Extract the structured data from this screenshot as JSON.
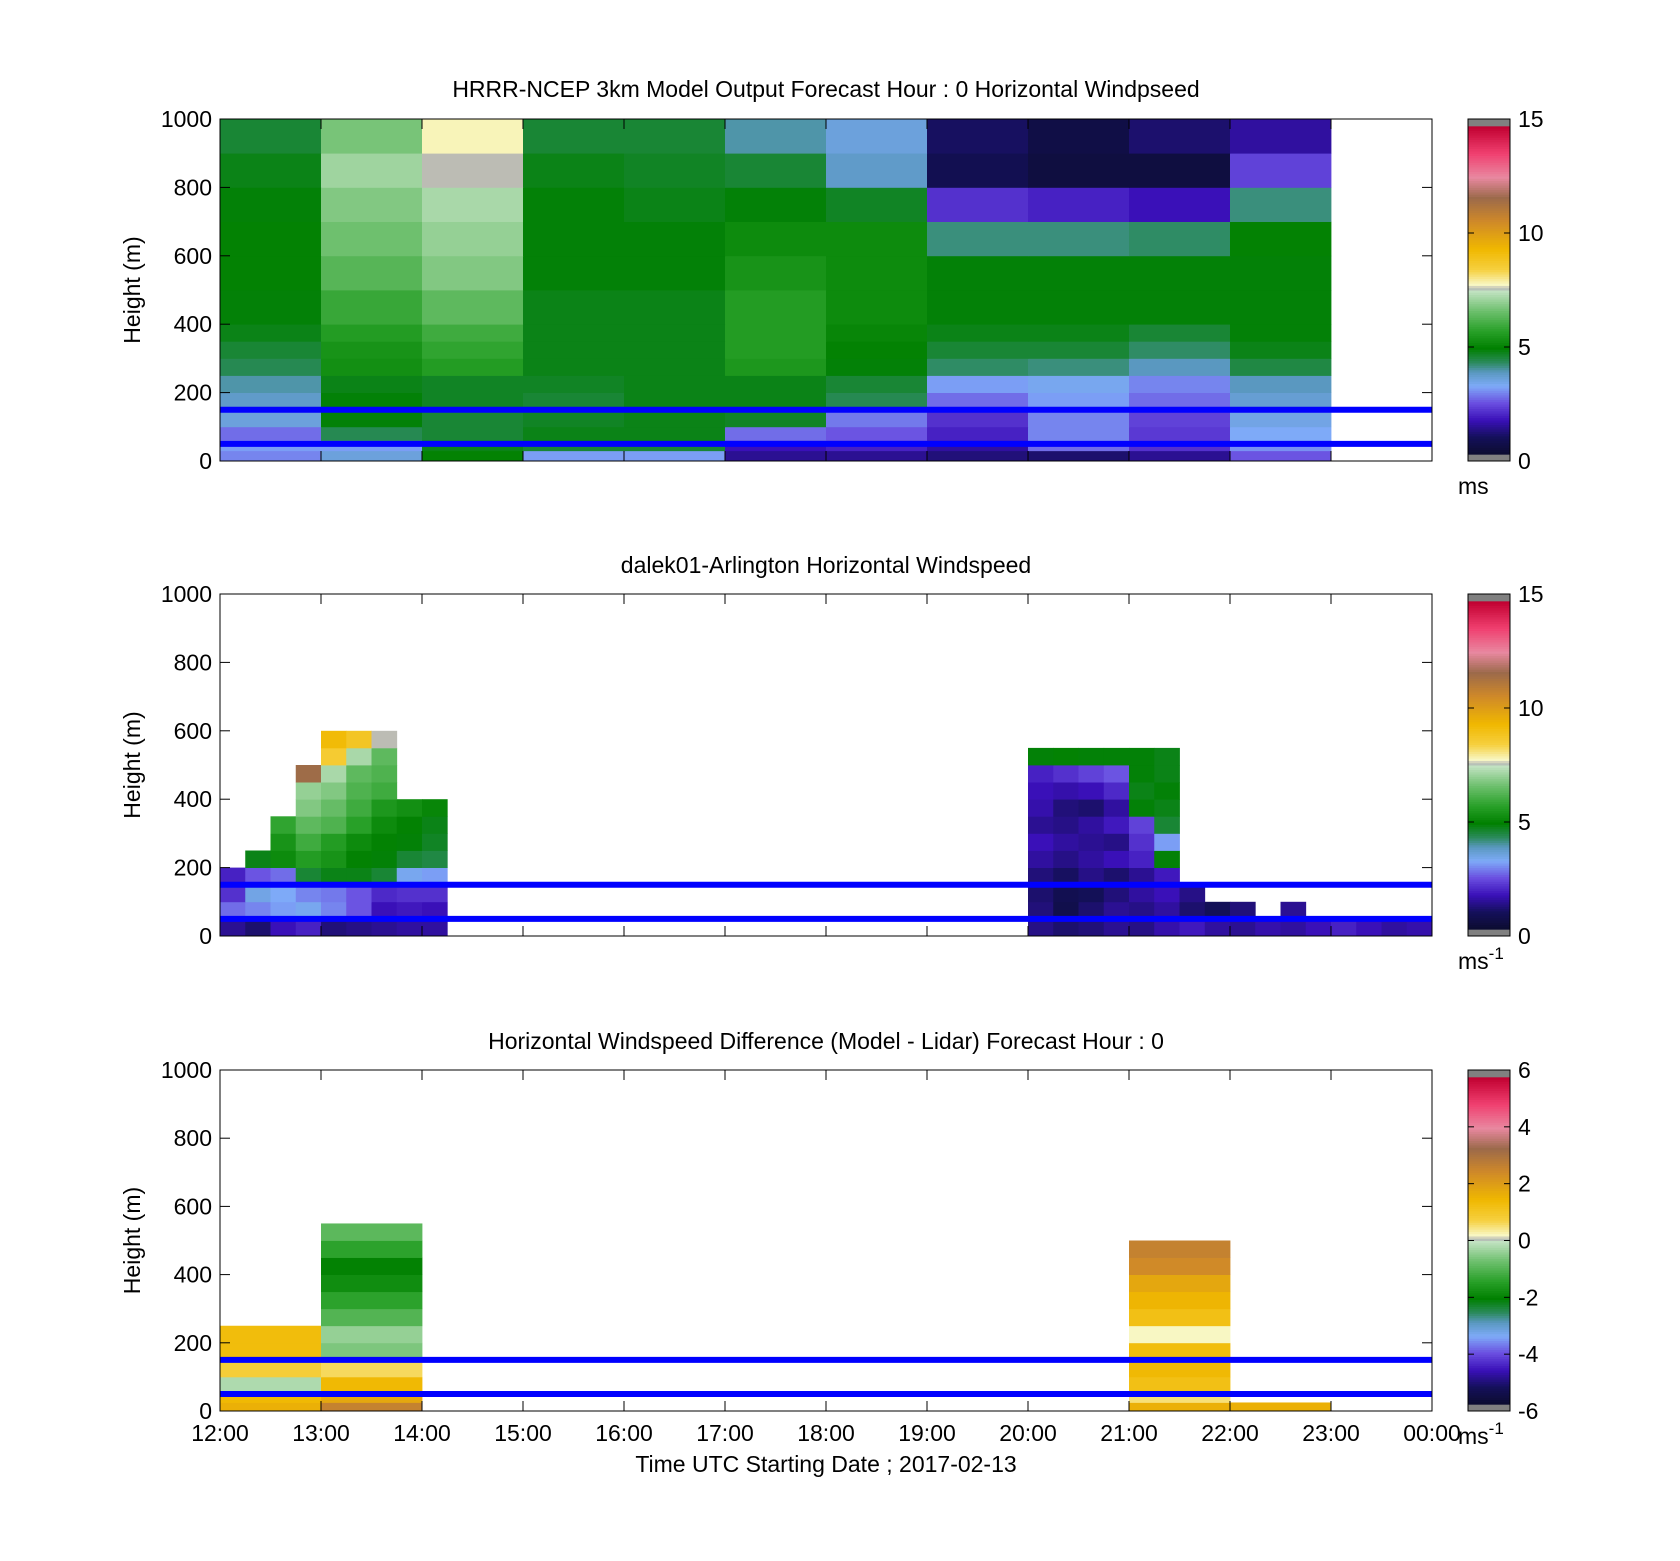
{
  "xaxis": {
    "title": "Time UTC  Starting Date ; 2017-02-13",
    "tick_labels": [
      "12:00",
      "13:00",
      "14:00",
      "15:00",
      "16:00",
      "17:00",
      "18:00",
      "19:00",
      "20:00",
      "21:00",
      "22:00",
      "23:00",
      "00:00"
    ]
  },
  "reference_lines": {
    "heights_m": [
      150,
      50
    ],
    "color": "#0000ff"
  },
  "chart_data": [
    {
      "type": "heatmap",
      "title": "HRRR-NCEP 3km Model Output   Forecast Hour : 0 Horizontal Windpseed",
      "ylabel": "Height (m)",
      "ylim": [
        0,
        1000
      ],
      "yticks": [
        "0",
        "200",
        "400",
        "600",
        "800",
        "1000"
      ],
      "xlim": [
        12,
        24
      ],
      "colorbar": {
        "min": 0,
        "max": 15,
        "ticks": [
          "0",
          "5",
          "10",
          "15"
        ],
        "unit": "ms",
        "unit_sup": ""
      },
      "time_bins_hr": [
        12,
        13,
        14,
        15,
        16,
        17,
        18,
        19,
        20,
        21,
        22,
        23
      ],
      "height_edges_m": [
        0,
        30,
        60,
        100,
        150,
        200,
        250,
        300,
        350,
        400,
        500,
        600,
        700,
        800,
        900,
        1000
      ],
      "values_ms": [
        [
          3.0,
          3.6,
          5.0,
          3.2,
          3.2,
          1.5,
          1.5,
          1.3,
          1.2,
          1.5,
          2.6,
          null
        ],
        [
          3.2,
          3.2,
          4.8,
          4.6,
          4.6,
          1.8,
          2.0,
          1.6,
          2.8,
          2.2,
          3.1,
          null
        ],
        [
          2.8,
          4.4,
          4.6,
          4.8,
          4.8,
          2.8,
          2.6,
          2.0,
          3.0,
          2.3,
          3.3,
          null
        ],
        [
          3.6,
          4.9,
          4.6,
          4.7,
          4.8,
          4.7,
          2.9,
          2.2,
          3.0,
          2.4,
          3.5,
          null
        ],
        [
          3.8,
          4.9,
          4.7,
          4.6,
          4.8,
          4.8,
          4.4,
          2.8,
          3.2,
          2.8,
          3.7,
          null
        ],
        [
          4.0,
          4.8,
          4.7,
          4.7,
          4.8,
          4.8,
          4.6,
          3.2,
          3.4,
          3.0,
          3.9,
          null
        ],
        [
          4.4,
          5.3,
          5.6,
          4.8,
          4.8,
          5.5,
          4.9,
          4.3,
          4.2,
          3.9,
          4.5,
          null
        ],
        [
          4.6,
          5.4,
          5.8,
          4.8,
          4.8,
          5.6,
          5.0,
          4.6,
          4.6,
          4.3,
          4.8,
          null
        ],
        [
          4.8,
          5.6,
          6.0,
          4.8,
          4.8,
          5.6,
          5.1,
          4.8,
          4.8,
          4.6,
          4.9,
          null
        ],
        [
          4.9,
          5.9,
          6.4,
          4.8,
          4.8,
          5.6,
          5.2,
          4.9,
          4.9,
          4.9,
          4.9,
          null
        ],
        [
          5.0,
          6.3,
          6.8,
          4.9,
          4.9,
          5.4,
          5.2,
          4.9,
          4.9,
          4.9,
          4.9,
          null
        ],
        [
          5.0,
          6.6,
          7.0,
          4.9,
          4.9,
          5.2,
          5.2,
          4.2,
          4.2,
          4.3,
          5.0,
          null
        ],
        [
          4.9,
          6.8,
          7.2,
          4.9,
          4.8,
          4.9,
          4.7,
          2.2,
          2.0,
          1.8,
          4.2,
          null
        ],
        [
          4.8,
          7.1,
          7.6,
          4.8,
          4.7,
          4.6,
          3.8,
          0.9,
          0.6,
          0.6,
          2.4,
          null
        ],
        [
          4.6,
          6.7,
          7.8,
          4.6,
          4.6,
          4.0,
          3.6,
          1.1,
          0.7,
          1.2,
          1.6,
          null
        ]
      ]
    },
    {
      "type": "heatmap",
      "title": "dalek01-Arlington  Horizontal Windspeed",
      "ylabel": "Height (m)",
      "ylim": [
        0,
        1000
      ],
      "yticks": [
        "0",
        "200",
        "400",
        "600",
        "800",
        "1000"
      ],
      "xlim": [
        12,
        24
      ],
      "colorbar": {
        "min": 0,
        "max": 15,
        "ticks": [
          "0",
          "5",
          "10",
          "15"
        ],
        "unit": "ms",
        "unit_sup": "-1"
      },
      "time_bins_hr": [
        12.0,
        12.25,
        12.5,
        12.75,
        13.0,
        13.25,
        13.5,
        13.75,
        14.0,
        20.0,
        20.25,
        20.5,
        20.75,
        21.0,
        21.25,
        21.5,
        21.75,
        22.0,
        22.25,
        22.5,
        22.75,
        23.0,
        23.25,
        23.5,
        23.75
      ],
      "height_edges_m": [
        0,
        50,
        100,
        150,
        200,
        250,
        300,
        350,
        400,
        450,
        500,
        550,
        600
      ],
      "values_ms": [
        [
          1.5,
          1.2,
          1.8,
          2.0,
          1.3,
          1.4,
          1.5,
          1.6,
          1.6,
          1.4,
          1.2,
          1.3,
          1.5,
          1.4,
          1.7,
          1.9,
          1.6,
          1.5,
          1.7,
          1.6,
          1.8,
          2.0,
          1.8,
          1.6,
          1.7
        ],
        [
          2.8,
          3.0,
          3.2,
          3.4,
          3.0,
          2.6,
          1.8,
          1.9,
          1.8,
          1.3,
          0.8,
          1.2,
          1.5,
          1.4,
          1.6,
          1.2,
          1.0,
          1.3,
          null,
          1.5,
          null,
          null,
          null,
          null,
          null
        ],
        [
          2.2,
          3.5,
          3.3,
          3.0,
          2.9,
          2.6,
          2.1,
          2.2,
          2.2,
          1.2,
          0.9,
          1.0,
          1.3,
          1.6,
          1.8,
          1.4,
          null,
          null,
          null,
          null,
          null,
          null,
          null,
          null,
          null
        ],
        [
          2.0,
          2.6,
          2.8,
          4.6,
          4.8,
          4.8,
          4.6,
          3.4,
          3.2,
          1.3,
          1.1,
          1.4,
          1.2,
          1.5,
          1.9,
          null,
          null,
          null,
          null,
          null,
          null,
          null,
          null,
          null,
          null
        ],
        [
          null,
          4.8,
          5.2,
          5.6,
          5.4,
          5.0,
          4.9,
          4.6,
          4.5,
          1.6,
          1.4,
          1.6,
          1.8,
          2.0,
          4.9,
          null,
          null,
          null,
          null,
          null,
          null,
          null,
          null,
          null,
          null
        ],
        [
          null,
          null,
          5.4,
          6.0,
          5.6,
          5.2,
          5.0,
          4.9,
          4.7,
          1.8,
          1.6,
          1.5,
          1.4,
          2.2,
          3.2,
          null,
          null,
          null,
          null,
          null,
          null,
          null,
          null,
          null,
          null
        ],
        [
          null,
          null,
          5.8,
          6.4,
          6.2,
          5.7,
          5.2,
          5.0,
          4.8,
          1.5,
          1.4,
          1.6,
          1.9,
          2.4,
          4.6,
          null,
          null,
          null,
          null,
          null,
          null,
          null,
          null,
          null,
          null
        ],
        [
          null,
          null,
          null,
          6.8,
          6.5,
          6.0,
          5.5,
          5.3,
          5.1,
          1.7,
          1.3,
          1.2,
          1.6,
          4.9,
          4.8,
          null,
          null,
          null,
          null,
          null,
          null,
          null,
          null,
          null,
          null
        ],
        [
          null,
          null,
          null,
          7.0,
          6.8,
          6.2,
          6.0,
          null,
          null,
          1.8,
          1.7,
          1.8,
          2.1,
          4.8,
          4.9,
          null,
          null,
          null,
          null,
          null,
          null,
          null,
          null,
          null,
          null
        ],
        [
          null,
          null,
          null,
          11.5,
          7.2,
          6.4,
          6.2,
          null,
          null,
          2.0,
          2.2,
          2.4,
          2.6,
          4.9,
          4.8,
          null,
          null,
          null,
          null,
          null,
          null,
          null,
          null,
          null,
          null
        ],
        [
          null,
          null,
          null,
          null,
          8.6,
          7.2,
          6.4,
          null,
          null,
          4.9,
          5.0,
          4.9,
          4.9,
          4.9,
          4.8,
          null,
          null,
          null,
          null,
          null,
          null,
          null,
          null,
          null,
          null
        ],
        [
          null,
          null,
          null,
          null,
          9.2,
          8.8,
          7.6,
          null,
          null,
          null,
          null,
          null,
          null,
          null,
          null,
          null,
          null,
          null,
          null,
          null,
          null,
          null,
          null,
          null,
          null
        ]
      ]
    },
    {
      "type": "heatmap",
      "title": "Horizontal Windspeed Difference (Model - Lidar) Forecast Hour : 0",
      "ylabel": "Height (m)",
      "ylim": [
        0,
        1000
      ],
      "yticks": [
        "0",
        "200",
        "400",
        "600",
        "800",
        "1000"
      ],
      "xlim": [
        12,
        24
      ],
      "colorbar": {
        "min": -6,
        "max": 6,
        "ticks": [
          "-6",
          "-4",
          "-2",
          "0",
          "2",
          "4",
          "6"
        ],
        "unit": "ms",
        "unit_sup": "-1"
      },
      "time_bins_hr": [
        12,
        13,
        21,
        22
      ],
      "height_edges_m": [
        0,
        25,
        50,
        100,
        150,
        200,
        250,
        300,
        350,
        400,
        450,
        500,
        550
      ],
      "values_ms": [
        [
          1.6,
          2.6,
          1.6,
          1.6
        ],
        [
          1.4,
          1.8,
          0.5,
          null
        ],
        [
          -0.2,
          1.4,
          1.2,
          null
        ],
        [
          0.8,
          0.6,
          1.4,
          null
        ],
        [
          1.3,
          -0.6,
          1.3,
          null
        ],
        [
          1.3,
          -0.4,
          0.2,
          null
        ],
        [
          null,
          -1.0,
          1.2,
          null
        ],
        [
          null,
          -1.4,
          1.5,
          null
        ],
        [
          null,
          -1.8,
          1.8,
          null
        ],
        [
          null,
          -2.0,
          2.4,
          null
        ],
        [
          null,
          -1.4,
          2.6,
          null
        ],
        [
          null,
          -0.9,
          null,
          null
        ]
      ]
    }
  ]
}
